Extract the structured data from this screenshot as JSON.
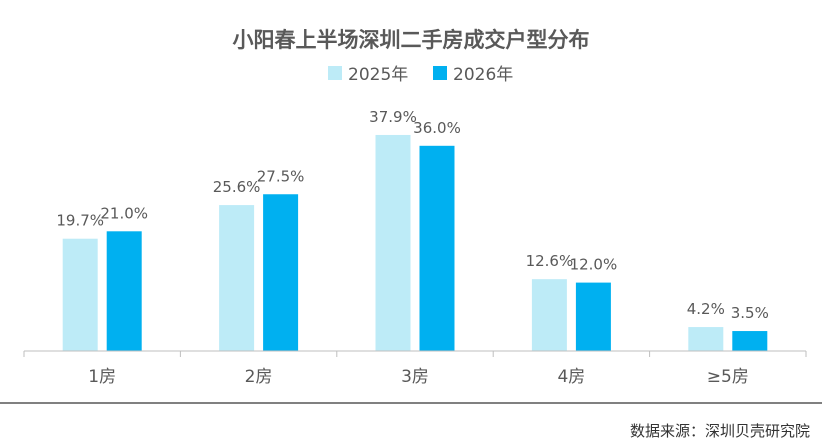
{
  "chart_data": {
    "type": "bar",
    "title": "小阳春上半场深圳二手房成交户型分布",
    "categories": [
      "1房",
      "2房",
      "3房",
      "4房",
      "≥5房"
    ],
    "series": [
      {
        "name": "2025年",
        "values": [
          19.7,
          25.6,
          37.9,
          12.6,
          4.2
        ],
        "labels": [
          "19.7%",
          "25.6%",
          "37.9%",
          "12.6%",
          "4.2%"
        ],
        "color": "#bdebf7"
      },
      {
        "name": "2026年",
        "values": [
          21.0,
          27.5,
          36.0,
          12.0,
          3.5
        ],
        "labels": [
          "21.0%",
          "27.5%",
          "36.0%",
          "12.0%",
          "3.5%"
        ],
        "color": "#00b0f0"
      }
    ],
    "ylim": [
      0,
      40
    ],
    "xlabel": "",
    "ylabel": "",
    "legend_position": "top-center",
    "grid": false
  },
  "source": "数据来源：深圳贝壳研究院"
}
